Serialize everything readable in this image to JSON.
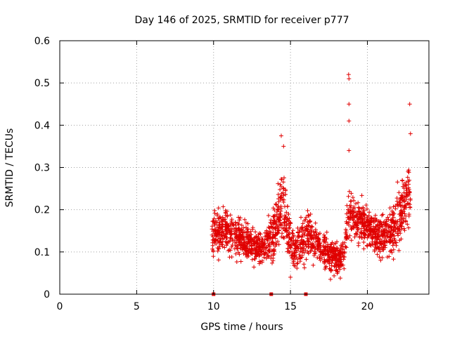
{
  "chart_data": {
    "type": "scatter",
    "title": "Day 146 of 2025, SRMTID for receiver p777",
    "xlabel": "GPS time / hours",
    "ylabel": "SRMTID / TECUs",
    "xlim": [
      0,
      24
    ],
    "ylim": [
      0,
      0.6
    ],
    "xticks": [
      0,
      5,
      10,
      15,
      20
    ],
    "yticks": [
      0,
      0.1,
      0.2,
      0.3,
      0.4,
      0.5,
      0.6
    ],
    "ytick_labels": [
      "0",
      "0.1",
      "0.2",
      "0.3",
      "0.4",
      "0.5",
      "0.6"
    ],
    "grid": true,
    "marker": "+",
    "series_color": "#e00000",
    "baseline_points": {
      "x": [
        10.0,
        13.75,
        16.0
      ],
      "y": [
        0,
        0,
        0
      ]
    },
    "series": [
      {
        "name": "SRMTID",
        "profile_hours": [
          9.9,
          10.25,
          10.75,
          11.25,
          11.75,
          12.25,
          12.75,
          13.25,
          13.75,
          14.25,
          14.5,
          14.75,
          15.25,
          15.75,
          16.25,
          16.75,
          17.25,
          17.75,
          18.25,
          18.5,
          18.75,
          19.0,
          19.25,
          19.75,
          20.25,
          20.75,
          21.25,
          21.75,
          22.25,
          22.75
        ],
        "profile_median": [
          0.14,
          0.15,
          0.15,
          0.14,
          0.13,
          0.12,
          0.11,
          0.11,
          0.13,
          0.18,
          0.22,
          0.16,
          0.1,
          0.12,
          0.14,
          0.12,
          0.1,
          0.09,
          0.08,
          0.11,
          0.19,
          0.19,
          0.17,
          0.17,
          0.15,
          0.13,
          0.14,
          0.16,
          0.2,
          0.24
        ],
        "profile_spread": [
          0.035,
          0.045,
          0.04,
          0.04,
          0.035,
          0.035,
          0.03,
          0.035,
          0.045,
          0.07,
          0.075,
          0.05,
          0.035,
          0.045,
          0.04,
          0.035,
          0.035,
          0.03,
          0.03,
          0.04,
          0.05,
          0.045,
          0.04,
          0.04,
          0.04,
          0.04,
          0.04,
          0.05,
          0.06,
          0.065
        ],
        "points_per_hour": 140,
        "x_range": [
          9.9,
          22.8
        ],
        "outliers": [
          {
            "x": 18.78,
            "y": 0.52
          },
          {
            "x": 18.8,
            "y": 0.51
          },
          {
            "x": 18.8,
            "y": 0.45
          },
          {
            "x": 18.8,
            "y": 0.41
          },
          {
            "x": 18.8,
            "y": 0.34
          },
          {
            "x": 22.75,
            "y": 0.45
          },
          {
            "x": 22.8,
            "y": 0.38
          },
          {
            "x": 14.4,
            "y": 0.375
          },
          {
            "x": 14.55,
            "y": 0.35
          },
          {
            "x": 15.0,
            "y": 0.04
          },
          {
            "x": 17.6,
            "y": 0.035
          }
        ]
      }
    ]
  }
}
